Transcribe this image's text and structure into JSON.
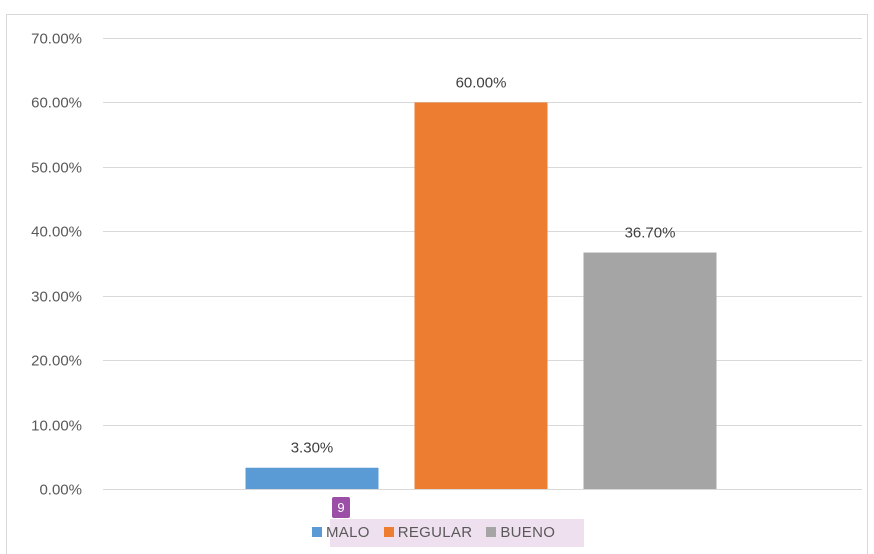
{
  "chart_data": {
    "type": "bar",
    "categories": [
      "MALO",
      "REGULAR",
      "BUENO"
    ],
    "values": [
      3.3,
      60.0,
      36.7
    ],
    "data_labels": [
      "3.30%",
      "60.00%",
      "36.70%"
    ],
    "colors": [
      "#5b9bd5",
      "#ed7d31",
      "#a5a5a5"
    ],
    "ylim": [
      0,
      70
    ],
    "yticks": [
      0,
      10,
      20,
      30,
      40,
      50,
      60,
      70
    ],
    "ytick_labels": [
      "0.00%",
      "10.00%",
      "20.00%",
      "30.00%",
      "40.00%",
      "50.00%",
      "60.00%",
      "70.00%"
    ],
    "title": "",
    "xlabel": "",
    "ylabel": "",
    "grid": true,
    "legend_position": "bottom"
  },
  "legend": {
    "items": [
      {
        "label": "MALO",
        "color": "#5b9bd5"
      },
      {
        "label": "REGULAR",
        "color": "#ed7d31"
      },
      {
        "label": "BUENO",
        "color": "#a5a5a5"
      }
    ]
  },
  "badge": {
    "text": "9",
    "color": "#9b4fa6"
  }
}
